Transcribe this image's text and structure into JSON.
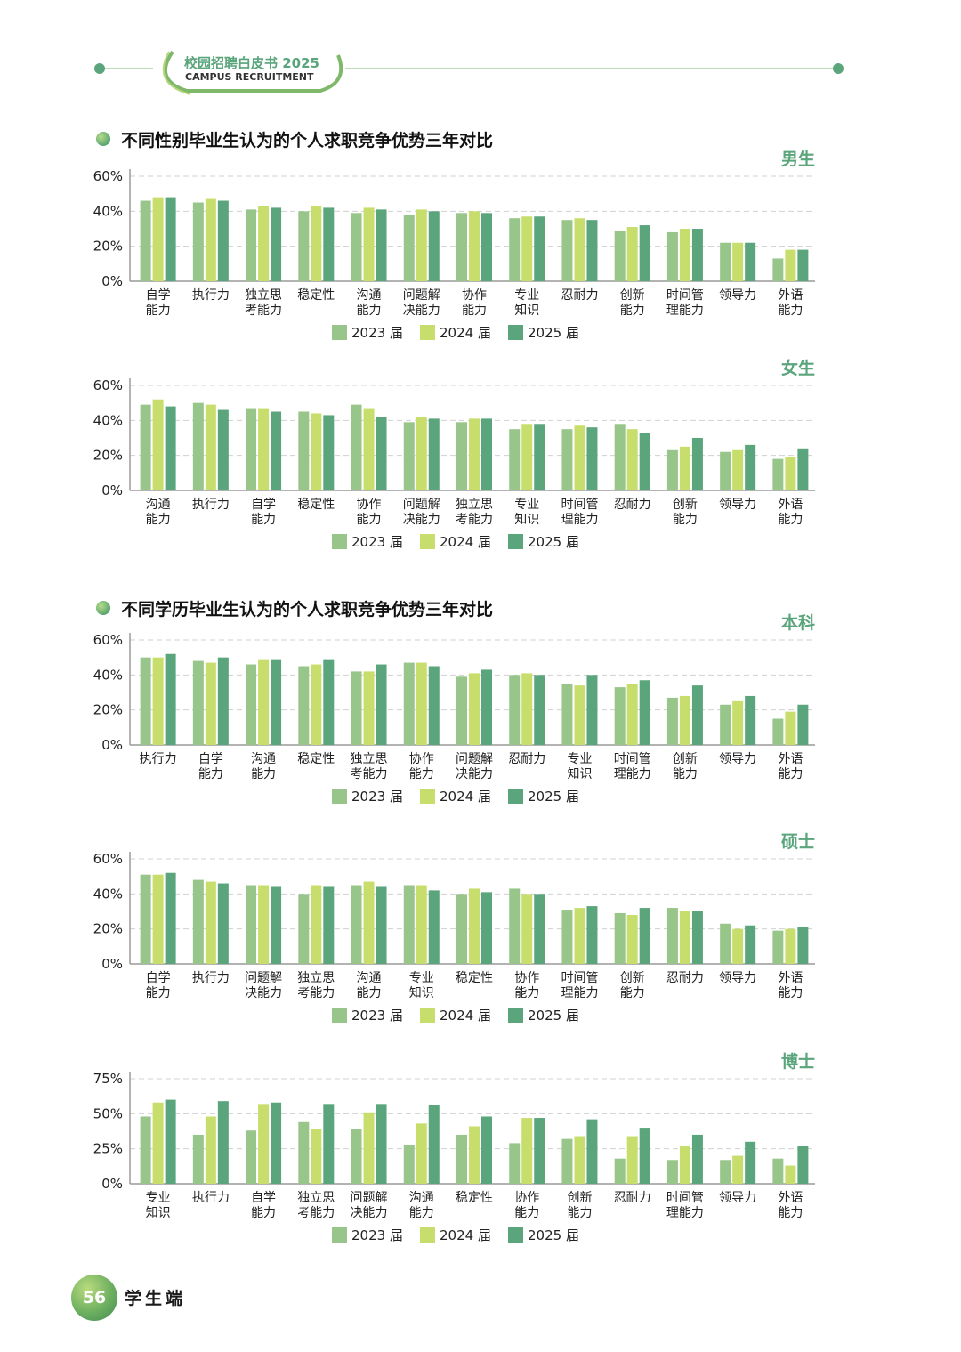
{
  "header": {
    "title_cn": "校园招聘白皮书 2025",
    "title_en": "CAMPUS RECRUITMENT"
  },
  "colors": {
    "y2023": "#98c68a",
    "y2024": "#c8de6c",
    "y2025": "#5aa57c",
    "accent": "#5aa57c",
    "axis": "#9a9a9a",
    "grid": "#d0d0d0"
  },
  "sections": [
    {
      "title": "不同性别毕业生认为的个人求职竞争优势三年对比"
    },
    {
      "title": "不同学历毕业生认为的个人求职竞争优势三年对比"
    }
  ],
  "chart_data": [
    {
      "type": "bar",
      "group": "男生",
      "ylim": [
        0,
        60
      ],
      "yticks": [
        "0%",
        "20%",
        "40%",
        "60%"
      ],
      "tick_values": [
        0,
        20,
        40,
        60
      ],
      "categories": [
        [
          "自学",
          "能力"
        ],
        [
          "执行力"
        ],
        [
          "独立思",
          "考能力"
        ],
        [
          "稳定性"
        ],
        [
          "沟通",
          "能力"
        ],
        [
          "问题解",
          "决能力"
        ],
        [
          "协作",
          "能力"
        ],
        [
          "专业",
          "知识"
        ],
        [
          "忍耐力"
        ],
        [
          "创新",
          "能力"
        ],
        [
          "时间管",
          "理能力"
        ],
        [
          "领导力"
        ],
        [
          "外语",
          "能力"
        ]
      ],
      "legend": [
        "2023 届",
        "2024 届",
        "2025 届"
      ],
      "series": [
        {
          "name": "2023 届",
          "values": [
            46,
            45,
            41,
            40,
            39,
            38,
            39,
            36,
            35,
            29,
            28,
            22,
            13
          ]
        },
        {
          "name": "2024 届",
          "values": [
            48,
            47,
            43,
            43,
            42,
            41,
            40,
            37,
            36,
            31,
            30,
            22,
            18
          ]
        },
        {
          "name": "2025 届",
          "values": [
            48,
            46,
            42,
            42,
            41,
            40,
            39,
            37,
            35,
            32,
            30,
            22,
            18
          ]
        }
      ]
    },
    {
      "type": "bar",
      "group": "女生",
      "ylim": [
        0,
        60
      ],
      "yticks": [
        "0%",
        "20%",
        "40%",
        "60%"
      ],
      "tick_values": [
        0,
        20,
        40,
        60
      ],
      "categories": [
        [
          "沟通",
          "能力"
        ],
        [
          "执行力"
        ],
        [
          "自学",
          "能力"
        ],
        [
          "稳定性"
        ],
        [
          "协作",
          "能力"
        ],
        [
          "问题解",
          "决能力"
        ],
        [
          "独立思",
          "考能力"
        ],
        [
          "专业",
          "知识"
        ],
        [
          "时间管",
          "理能力"
        ],
        [
          "忍耐力"
        ],
        [
          "创新",
          "能力"
        ],
        [
          "领导力"
        ],
        [
          "外语",
          "能力"
        ]
      ],
      "legend": [
        "2023 届",
        "2024 届",
        "2025 届"
      ],
      "series": [
        {
          "name": "2023 届",
          "values": [
            49,
            50,
            47,
            45,
            49,
            39,
            39,
            35,
            35,
            38,
            23,
            22,
            18
          ]
        },
        {
          "name": "2024 届",
          "values": [
            52,
            49,
            47,
            44,
            47,
            42,
            41,
            38,
            37,
            35,
            25,
            23,
            19
          ]
        },
        {
          "name": "2025 届",
          "values": [
            48,
            46,
            45,
            43,
            42,
            41,
            41,
            38,
            36,
            33,
            30,
            26,
            24
          ]
        }
      ]
    },
    {
      "type": "bar",
      "group": "本科",
      "ylim": [
        0,
        60
      ],
      "yticks": [
        "0%",
        "20%",
        "40%",
        "60%"
      ],
      "tick_values": [
        0,
        20,
        40,
        60
      ],
      "categories": [
        [
          "执行力"
        ],
        [
          "自学",
          "能力"
        ],
        [
          "沟通",
          "能力"
        ],
        [
          "稳定性"
        ],
        [
          "独立思",
          "考能力"
        ],
        [
          "协作",
          "能力"
        ],
        [
          "问题解",
          "决能力"
        ],
        [
          "忍耐力"
        ],
        [
          "专业",
          "知识"
        ],
        [
          "时间管",
          "理能力"
        ],
        [
          "创新",
          "能力"
        ],
        [
          "领导力"
        ],
        [
          "外语",
          "能力"
        ]
      ],
      "legend": [
        "2023 届",
        "2024 届",
        "2025 届"
      ],
      "series": [
        {
          "name": "2023 届",
          "values": [
            50,
            48,
            46,
            45,
            42,
            47,
            39,
            40,
            35,
            33,
            27,
            23,
            15
          ]
        },
        {
          "name": "2024 届",
          "values": [
            50,
            47,
            49,
            46,
            42,
            47,
            41,
            41,
            34,
            35,
            28,
            25,
            19
          ]
        },
        {
          "name": "2025 届",
          "values": [
            52,
            50,
            49,
            49,
            46,
            45,
            43,
            40,
            40,
            37,
            34,
            28,
            23
          ]
        }
      ]
    },
    {
      "type": "bar",
      "group": "硕士",
      "ylim": [
        0,
        60
      ],
      "yticks": [
        "0%",
        "20%",
        "40%",
        "60%"
      ],
      "tick_values": [
        0,
        20,
        40,
        60
      ],
      "categories": [
        [
          "自学",
          "能力"
        ],
        [
          "执行力"
        ],
        [
          "问题解",
          "决能力"
        ],
        [
          "独立思",
          "考能力"
        ],
        [
          "沟通",
          "能力"
        ],
        [
          "专业",
          "知识"
        ],
        [
          "稳定性"
        ],
        [
          "协作",
          "能力"
        ],
        [
          "时间管",
          "理能力"
        ],
        [
          "创新",
          "能力"
        ],
        [
          "忍耐力"
        ],
        [
          "领导力"
        ],
        [
          "外语",
          "能力"
        ]
      ],
      "legend": [
        "2023 届",
        "2024 届",
        "2025 届"
      ],
      "series": [
        {
          "name": "2023 届",
          "values": [
            51,
            48,
            45,
            40,
            45,
            45,
            40,
            43,
            31,
            29,
            32,
            23,
            19
          ]
        },
        {
          "name": "2024 届",
          "values": [
            51,
            47,
            45,
            45,
            47,
            45,
            43,
            40,
            32,
            28,
            30,
            20,
            20
          ]
        },
        {
          "name": "2025 届",
          "values": [
            52,
            46,
            44,
            44,
            44,
            42,
            41,
            40,
            33,
            32,
            30,
            22,
            21
          ]
        }
      ]
    },
    {
      "type": "bar",
      "group": "博士",
      "ylim": [
        0,
        75
      ],
      "yticks": [
        "0%",
        "25%",
        "50%",
        "75%"
      ],
      "tick_values": [
        0,
        25,
        50,
        75
      ],
      "categories": [
        [
          "专业",
          "知识"
        ],
        [
          "执行力"
        ],
        [
          "自学",
          "能力"
        ],
        [
          "独立思",
          "考能力"
        ],
        [
          "问题解",
          "决能力"
        ],
        [
          "沟通",
          "能力"
        ],
        [
          "稳定性"
        ],
        [
          "协作",
          "能力"
        ],
        [
          "创新",
          "能力"
        ],
        [
          "忍耐力"
        ],
        [
          "时间管",
          "理能力"
        ],
        [
          "领导力"
        ],
        [
          "外语",
          "能力"
        ]
      ],
      "legend": [
        "2023 届",
        "2024 届",
        "2025 届"
      ],
      "series": [
        {
          "name": "2023 届",
          "values": [
            48,
            35,
            38,
            44,
            39,
            28,
            35,
            29,
            32,
            18,
            17,
            17,
            18
          ]
        },
        {
          "name": "2024 届",
          "values": [
            58,
            48,
            57,
            39,
            51,
            43,
            41,
            47,
            34,
            34,
            27,
            20,
            13
          ]
        },
        {
          "name": "2025 届",
          "values": [
            60,
            59,
            58,
            57,
            57,
            56,
            48,
            47,
            46,
            40,
            35,
            30,
            27
          ]
        }
      ]
    }
  ],
  "footer": {
    "page_number": "56",
    "label": "学生端"
  }
}
